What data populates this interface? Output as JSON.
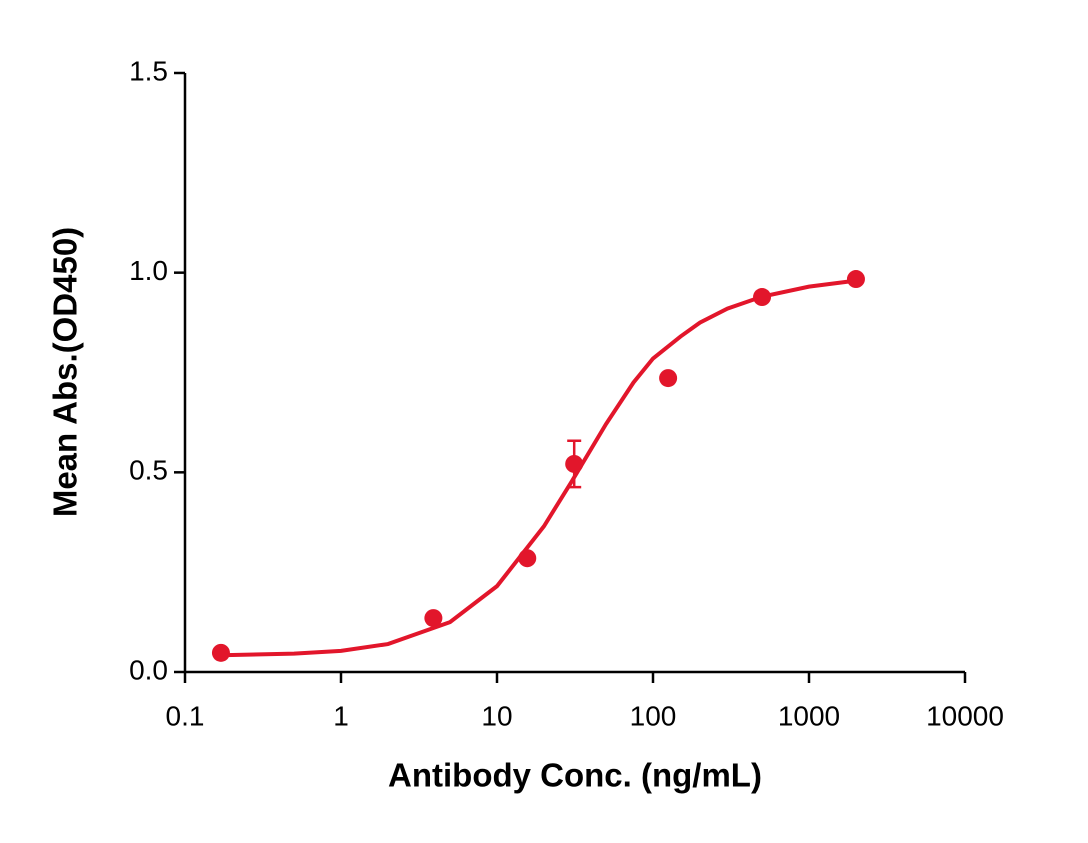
{
  "chart_data": {
    "type": "scatter",
    "xlabel": "Antibody Conc. (ng/mL)",
    "ylabel": "Mean Abs.(OD450)",
    "xscale": "log",
    "xlim": [
      0.1,
      10000
    ],
    "ylim": [
      0,
      1.5
    ],
    "xticks": [
      0.1,
      1,
      10,
      100,
      1000,
      10000
    ],
    "yticks": [
      {
        "value": 0,
        "label": "0.0"
      },
      0.5,
      {
        "value": 1,
        "label": "1.0"
      },
      1.5
    ],
    "series": [
      {
        "type": "scatter",
        "color": "#e2162b",
        "x": [
          0.17,
          3.91,
          15.63,
          31.25,
          125,
          500,
          2000
        ],
        "values": [
          0.048,
          0.135,
          0.285,
          0.521,
          0.736,
          0.939,
          0.984
        ],
        "errors": [
          null,
          null,
          null,
          0.058,
          null,
          null,
          null
        ]
      },
      {
        "type": "line",
        "color": "#e2162b",
        "x": [
          0.17,
          0.5,
          1,
          2,
          5,
          10,
          20,
          30,
          50,
          75,
          100,
          150,
          200,
          300,
          500,
          1000,
          2000
        ],
        "values": [
          0.042,
          0.046,
          0.053,
          0.07,
          0.125,
          0.215,
          0.365,
          0.476,
          0.621,
          0.725,
          0.785,
          0.84,
          0.875,
          0.91,
          0.94,
          0.965,
          0.98
        ]
      }
    ]
  }
}
